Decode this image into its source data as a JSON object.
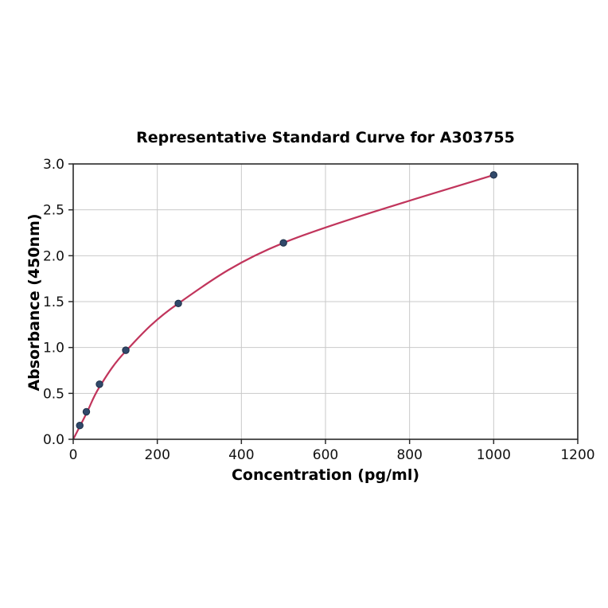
{
  "chart_data": {
    "type": "scatter",
    "title": "Representative Standard Curve for A303755",
    "xlabel": "Concentration (pg/ml)",
    "ylabel": "Absorbance (450nm)",
    "xlim": [
      0,
      1200
    ],
    "ylim": [
      0,
      3.0
    ],
    "x_ticks": [
      0,
      200,
      400,
      600,
      800,
      1000,
      1200
    ],
    "y_ticks": [
      0.0,
      0.5,
      1.0,
      1.5,
      2.0,
      2.5,
      3.0
    ],
    "grid": true,
    "legend": false,
    "points": [
      {
        "x": 15.6,
        "y": 0.15
      },
      {
        "x": 31.25,
        "y": 0.3
      },
      {
        "x": 62.5,
        "y": 0.6
      },
      {
        "x": 125,
        "y": 0.97
      },
      {
        "x": 250,
        "y": 1.48
      },
      {
        "x": 500,
        "y": 2.14
      },
      {
        "x": 1000,
        "y": 2.88
      }
    ],
    "fit_curve_points": [
      {
        "x": 0,
        "y": 0.0
      },
      {
        "x": 31.25,
        "y": 0.28
      },
      {
        "x": 62.5,
        "y": 0.57
      },
      {
        "x": 125,
        "y": 0.96
      },
      {
        "x": 250,
        "y": 1.48
      },
      {
        "x": 500,
        "y": 2.14
      },
      {
        "x": 1000,
        "y": 2.88
      }
    ],
    "colors": {
      "curve": "#c1355c",
      "marker_fill": "#31496b",
      "marker_edge": "#1d2f47",
      "grid": "#c9c9c9",
      "spine": "#2a2a2a",
      "text": "#000000",
      "tick_text": "#111111",
      "background": "#ffffff"
    }
  }
}
